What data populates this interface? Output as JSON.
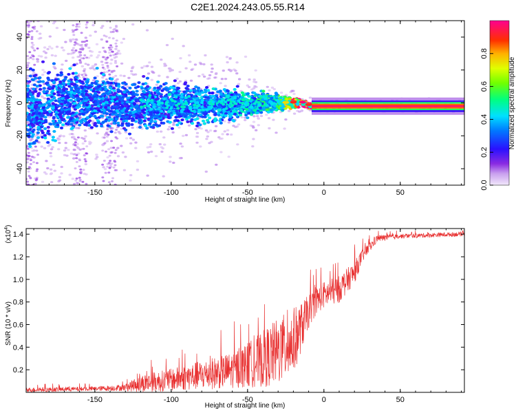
{
  "title": "C2E1.2024.243.05.55.R14",
  "chart_data": [
    {
      "type": "heatmap",
      "xlabel": "Height of straight line (km)",
      "ylabel": "Frequency (Hz)",
      "xlim": [
        -195,
        92
      ],
      "ylim": [
        -50,
        50
      ],
      "xticks": [
        -150,
        -100,
        -50,
        0,
        50
      ],
      "yticks": [
        -40,
        -20,
        0,
        20,
        40
      ],
      "colorbar": {
        "label": "Normalized spectral amplitude",
        "range": [
          0,
          1
        ],
        "ticks": [
          0.0,
          0.2,
          0.4,
          0.6,
          0.8
        ]
      },
      "ridge": [
        {
          "x": -190,
          "y": -4,
          "spread": 14,
          "amp": 0.3
        },
        {
          "x": -160,
          "y": 2,
          "spread": 12,
          "amp": 0.3
        },
        {
          "x": -130,
          "y": -1,
          "spread": 9,
          "amp": 0.3
        },
        {
          "x": -100,
          "y": -1,
          "spread": 8,
          "amp": 0.3
        },
        {
          "x": -60,
          "y": -1,
          "spread": 6,
          "amp": 0.35
        },
        {
          "x": -30,
          "y": 0,
          "spread": 3,
          "amp": 0.45
        },
        {
          "x": -15,
          "y": 0,
          "spread": 1.5,
          "amp": 0.9
        },
        {
          "x": -8,
          "y": -2,
          "spread": 1,
          "amp": 0.95
        },
        {
          "x": 30,
          "y": -2,
          "spread": 1,
          "amp": 0.95
        },
        {
          "x": 90,
          "y": -2,
          "spread": 1,
          "amp": 0.95
        }
      ]
    },
    {
      "type": "line",
      "xlabel": "Height of straight line (km)",
      "ylabel": "SNR (10 * v/v)",
      "y_multiplier": "(x10",
      "y_multiplier_exp": "4",
      "xlim": [
        -195,
        92
      ],
      "ylim": [
        0,
        1.45
      ],
      "xticks": [
        -150,
        -100,
        -50,
        0,
        50
      ],
      "yticks": [
        0.2,
        0.4,
        0.6,
        0.8,
        1.0,
        1.2,
        1.4
      ],
      "series": [
        {
          "color": "#e83030",
          "envelope": {
            "x": [
              -195,
              -150,
              -130,
              -120,
              -100,
              -80,
              -60,
              -50,
              -40,
              -30,
              -20,
              -15,
              -10,
              -5,
              0,
              10,
              20,
              25,
              35,
              50,
              92
            ],
            "base": [
              0.02,
              0.03,
              0.04,
              0.07,
              0.1,
              0.14,
              0.18,
              0.22,
              0.27,
              0.33,
              0.42,
              0.55,
              0.7,
              0.8,
              0.85,
              0.9,
              1.05,
              1.2,
              1.36,
              1.38,
              1.4
            ],
            "noise": [
              0.02,
              0.02,
              0.03,
              0.08,
              0.1,
              0.13,
              0.16,
              0.2,
              0.25,
              0.3,
              0.3,
              0.22,
              0.15,
              0.12,
              0.12,
              0.12,
              0.1,
              0.06,
              0.03,
              0.02,
              0.02
            ]
          }
        }
      ]
    }
  ]
}
